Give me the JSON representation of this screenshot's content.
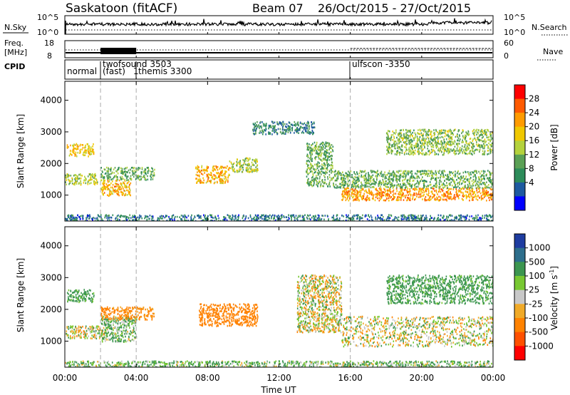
{
  "title": {
    "station": "Saskatoon (fitACF)",
    "beam": "Beam 07",
    "dates": "26/Oct/2015 - 27/Oct/2015"
  },
  "nsky_panel": {
    "left_label": "N.Sky",
    "left_ticks": [
      "10^5",
      "10^0"
    ],
    "right_ticks": [
      "10^5",
      "10^0"
    ],
    "right_label": "N.Search"
  },
  "freq_panel": {
    "left_label_1": "Freq.",
    "left_label_2": "[MHz]",
    "left_ticks": [
      "18",
      "8"
    ],
    "right_ticks": [
      "60",
      "0"
    ],
    "right_label": "Nave"
  },
  "cpid_panel": {
    "label": "CPID",
    "modes": [
      {
        "t": 0.0,
        "name": "normal"
      },
      {
        "t": 2.0,
        "name": "twofsound 3503"
      },
      {
        "t": 2.0,
        "name": "(fast)"
      },
      {
        "t": 4.0,
        "name": "themis 3300"
      },
      {
        "t": 16.0,
        "name": "ulfscon -3350"
      }
    ],
    "overlap_glyph": "1"
  },
  "power_colorbar": {
    "label": "Power [dB]",
    "ticks": [
      "28",
      "24",
      "20",
      "16",
      "12",
      "8",
      "4"
    ],
    "colors": [
      "#ff0000",
      "#ff5a00",
      "#ff9b00",
      "#f0c800",
      "#b4d23c",
      "#5aa055",
      "#2d8c5a",
      "#1e5aa0",
      "#0000ff"
    ]
  },
  "velocity_colorbar": {
    "label": "Velocity [m s",
    "label_sup": "-1",
    "label_end": "]",
    "ticks": [
      "1000",
      "500",
      "100",
      "25",
      "-25",
      "-100",
      "-500",
      "-1000"
    ],
    "colors": [
      "#1e3ca0",
      "#2d6e8c",
      "#3c9650",
      "#78c832",
      "#c8c8c8",
      "#f0aa28",
      "#ff8200",
      "#ff5000",
      "#ff0000"
    ]
  },
  "chart_data": [
    {
      "type": "heatmap",
      "panel": "power",
      "xlabel": "Time UT",
      "ylabel": "Slant Range [km]",
      "xlim": [
        0,
        24
      ],
      "ylim": [
        180,
        4600
      ],
      "xticks": [
        "00:00",
        "04:00",
        "08:00",
        "12:00",
        "16:00",
        "20:00",
        "00:00"
      ],
      "yticks": [
        "1000",
        "2000",
        "3000",
        "4000"
      ],
      "mode_change_lines_hours": [
        2,
        4,
        16
      ],
      "scatter_regions": [
        {
          "t0": 0.1,
          "t1": 1.6,
          "r0": 2250,
          "r1": 2650,
          "power_db": 20
        },
        {
          "t0": 0.0,
          "t1": 1.8,
          "r0": 1350,
          "r1": 1700,
          "power_db": 16
        },
        {
          "t0": 2.0,
          "t1": 3.7,
          "r0": 1000,
          "r1": 1500,
          "power_db": 22
        },
        {
          "t0": 2.0,
          "t1": 5.0,
          "r0": 1500,
          "r1": 1900,
          "power_db": 12
        },
        {
          "t0": 7.3,
          "t1": 9.2,
          "r0": 1400,
          "r1": 1950,
          "power_db": 22
        },
        {
          "t0": 9.2,
          "t1": 10.8,
          "r0": 1750,
          "r1": 2200,
          "power_db": 16
        },
        {
          "t0": 13.5,
          "t1": 15.0,
          "r0": 1300,
          "r1": 2700,
          "power_db": 12
        },
        {
          "t0": 15.5,
          "t1": 24.0,
          "r0": 850,
          "r1": 1250,
          "power_db": 24
        },
        {
          "t0": 15.0,
          "t1": 24.0,
          "r0": 1250,
          "r1": 1800,
          "power_db": 12
        },
        {
          "t0": 18.0,
          "t1": 24.0,
          "r0": 2300,
          "r1": 3100,
          "power_db": 14
        },
        {
          "t0": 10.5,
          "t1": 14.0,
          "r0": 2950,
          "r1": 3350,
          "power_db": 8
        },
        {
          "t0": 0.0,
          "t1": 24.0,
          "r0": 200,
          "r1": 400,
          "power_db": 6
        }
      ]
    },
    {
      "type": "heatmap",
      "panel": "velocity",
      "xlabel": "Time UT",
      "ylabel": "Slant Range [km]",
      "xlim": [
        0,
        24
      ],
      "ylim": [
        180,
        4600
      ],
      "xticks": [
        "00:00",
        "04:00",
        "08:00",
        "12:00",
        "16:00",
        "20:00",
        "00:00"
      ],
      "yticks": [
        "1000",
        "2000",
        "3000",
        "4000"
      ],
      "mode_change_lines_hours": [
        2,
        4,
        16
      ],
      "scatter_regions": [
        {
          "t0": 0.1,
          "t1": 1.6,
          "r0": 2250,
          "r1": 2650,
          "velocity": 200
        },
        {
          "t0": 0.0,
          "t1": 2.2,
          "r0": 1100,
          "r1": 1500,
          "velocity": 0
        },
        {
          "t0": 2.0,
          "t1": 4.0,
          "r0": 1000,
          "r1": 1800,
          "velocity": 100
        },
        {
          "t0": 2.0,
          "t1": 5.0,
          "r0": 1700,
          "r1": 2100,
          "velocity": -200
        },
        {
          "t0": 7.5,
          "t1": 10.8,
          "r0": 1500,
          "r1": 2200,
          "velocity": -300
        },
        {
          "t0": 13.0,
          "t1": 15.5,
          "r0": 1300,
          "r1": 3100,
          "velocity": 0
        },
        {
          "t0": 15.5,
          "t1": 24.0,
          "r0": 850,
          "r1": 1800,
          "velocity": 0
        },
        {
          "t0": 18.0,
          "t1": 24.0,
          "r0": 2200,
          "r1": 3100,
          "velocity": 200
        },
        {
          "t0": 0.0,
          "t1": 24.0,
          "r0": 200,
          "r1": 400,
          "velocity": 100
        }
      ]
    }
  ]
}
